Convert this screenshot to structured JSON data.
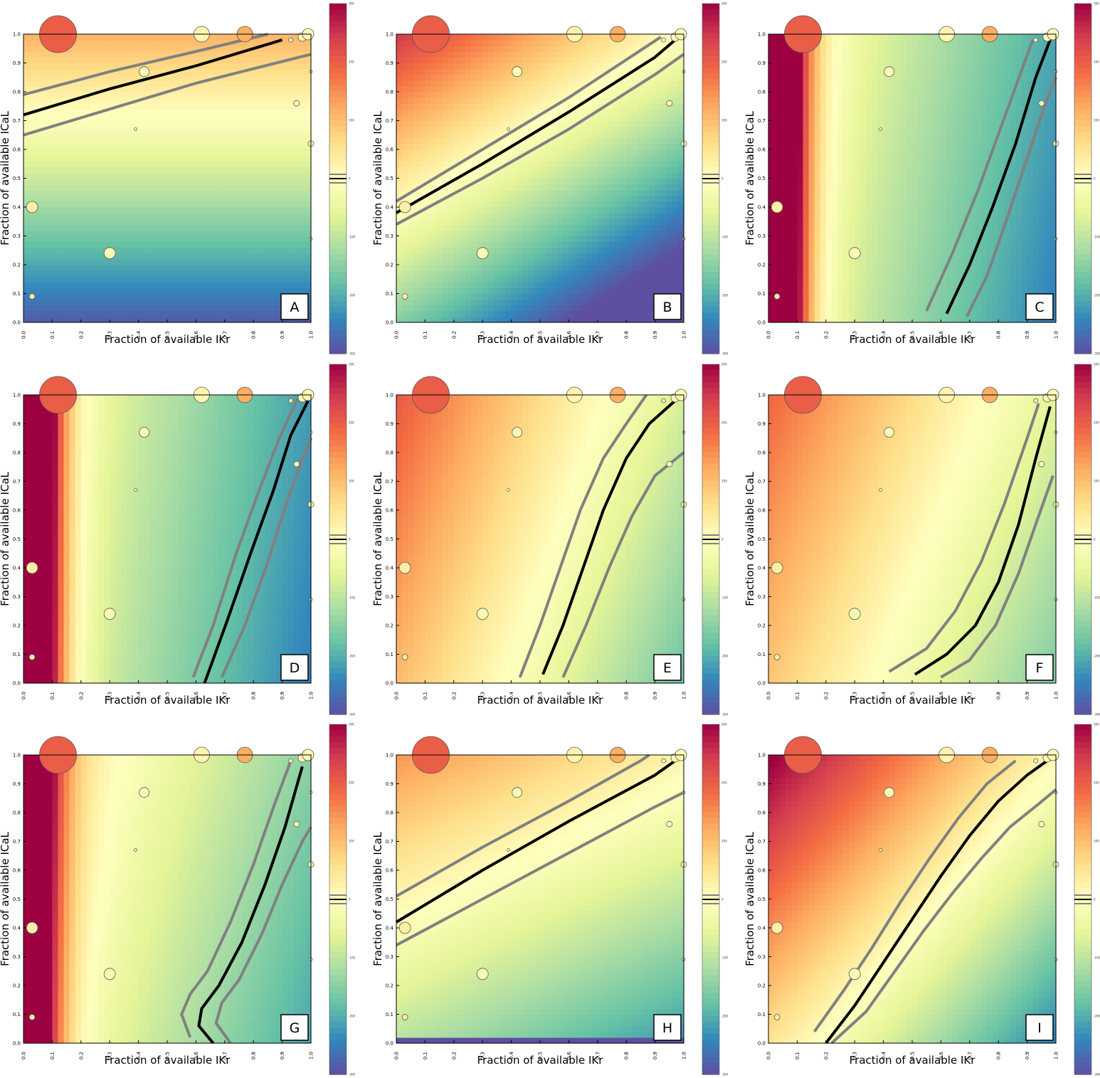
{
  "chart_data": [
    {
      "panel": "A",
      "type": "heatmap",
      "xlabel": "Fraction of available IKr",
      "ylabel": "Fraction of available ICaL",
      "xlim": [
        0,
        1
      ],
      "ylim": [
        0,
        1
      ],
      "xticks": [
        "0.0",
        "0.1",
        "0.2",
        "0.3",
        "0.4",
        "0.5",
        "0.6",
        "0.7",
        "0.8",
        "0.9",
        "1.0"
      ],
      "yticks": [
        "0.0",
        "0.1",
        "0.2",
        "0.3",
        "0.4",
        "0.5",
        "0.6",
        "0.7",
        "0.8",
        "0.9",
        "1.0"
      ],
      "colormap": "Spectral_r",
      "colorbar_range": [
        -300,
        300
      ],
      "colorbar_ticks": [
        "300",
        "200",
        "100",
        "0",
        "-100",
        "-200",
        "-300"
      ],
      "field": {
        "a": 0,
        "b": 0,
        "c": 400,
        "d": -288
      },
      "contour_black": [
        [
          0.0,
          0.72
        ],
        [
          0.3,
          0.81
        ],
        [
          0.6,
          0.89
        ],
        [
          0.9,
          0.98
        ]
      ],
      "contour_gray_upper": [
        [
          0.0,
          0.79
        ],
        [
          0.3,
          0.87
        ],
        [
          0.6,
          0.94
        ],
        [
          0.85,
          1.0
        ]
      ],
      "contour_gray_lower": [
        [
          0.0,
          0.65
        ],
        [
          0.3,
          0.74
        ],
        [
          0.6,
          0.83
        ],
        [
          1.0,
          0.93
        ]
      ]
    },
    {
      "panel": "B",
      "type": "heatmap",
      "xlabel": "Fraction of available IKr",
      "ylabel": "Fraction of available ICaL",
      "xlim": [
        0,
        1
      ],
      "ylim": [
        0,
        1
      ],
      "xticks": [
        "0.0",
        "0.1",
        "0.2",
        "0.3",
        "0.4",
        "0.5",
        "0.6",
        "0.7",
        "0.8",
        "0.9",
        "1.0"
      ],
      "yticks": [
        "0.0",
        "0.1",
        "0.2",
        "0.3",
        "0.4",
        "0.5",
        "0.6",
        "0.7",
        "0.8",
        "0.9",
        "1.0"
      ],
      "colormap": "Spectral_r",
      "colorbar_range": [
        -300,
        300
      ],
      "colorbar_ticks": [
        "300",
        "200",
        "100",
        "0",
        "-100",
        "-200",
        "-300"
      ],
      "field": {
        "a": -250,
        "b": 0,
        "c": 400,
        "d": -154
      },
      "contour_black": [
        [
          0.0,
          0.38
        ],
        [
          0.3,
          0.55
        ],
        [
          0.6,
          0.73
        ],
        [
          0.9,
          0.92
        ],
        [
          0.97,
          0.98
        ]
      ],
      "contour_gray_upper": [
        [
          0.0,
          0.42
        ],
        [
          0.3,
          0.6
        ],
        [
          0.6,
          0.78
        ],
        [
          0.92,
          0.99
        ]
      ],
      "contour_gray_lower": [
        [
          0.0,
          0.34
        ],
        [
          0.3,
          0.5
        ],
        [
          0.6,
          0.67
        ],
        [
          0.9,
          0.86
        ],
        [
          1.0,
          0.93
        ]
      ]
    },
    {
      "panel": "C",
      "type": "heatmap",
      "xlabel": "Fraction of available IKr",
      "ylabel": "Fraction of available ICaL",
      "xlim": [
        0,
        1
      ],
      "ylim": [
        0,
        1
      ],
      "xticks": [
        "0.0",
        "0.1",
        "0.2",
        "0.3",
        "0.4",
        "0.5",
        "0.6",
        "0.7",
        "0.8",
        "0.9",
        "1.0"
      ],
      "yticks": [
        "0.0",
        "0.1",
        "0.2",
        "0.3",
        "0.4",
        "0.5",
        "0.6",
        "0.7",
        "0.8",
        "0.9",
        "1.0"
      ],
      "colormap": "Spectral_r",
      "colorbar_range": [
        -300,
        300
      ],
      "colorbar_ticks": [
        "300",
        "200",
        "100",
        "0",
        "-100",
        "-200",
        "-300"
      ],
      "field": {
        "a": -230,
        "b": 2000,
        "c": 40,
        "d": -20
      },
      "contour_black": [
        [
          0.62,
          0.03
        ],
        [
          0.7,
          0.2
        ],
        [
          0.78,
          0.4
        ],
        [
          0.86,
          0.62
        ],
        [
          0.93,
          0.85
        ],
        [
          0.98,
          0.98
        ]
      ],
      "contour_gray_upper": [
        [
          0.55,
          0.04
        ],
        [
          0.64,
          0.24
        ],
        [
          0.73,
          0.46
        ],
        [
          0.81,
          0.68
        ],
        [
          0.89,
          0.9
        ],
        [
          0.92,
          0.98
        ]
      ],
      "contour_gray_lower": [
        [
          0.69,
          0.02
        ],
        [
          0.76,
          0.16
        ],
        [
          0.83,
          0.36
        ],
        [
          0.9,
          0.57
        ],
        [
          0.96,
          0.75
        ],
        [
          1.0,
          0.85
        ]
      ]
    },
    {
      "panel": "D",
      "type": "heatmap",
      "xlabel": "Fraction of available IKr",
      "ylabel": "Fraction of available ICaL",
      "xlim": [
        0,
        1
      ],
      "ylim": [
        0,
        1
      ],
      "xticks": [
        "0.0",
        "0.1",
        "0.2",
        "0.3",
        "0.4",
        "0.5",
        "0.6",
        "0.7",
        "0.8",
        "0.9",
        "1.0"
      ],
      "yticks": [
        "0.0",
        "0.1",
        "0.2",
        "0.3",
        "0.4",
        "0.5",
        "0.6",
        "0.7",
        "0.8",
        "0.9",
        "1.0"
      ],
      "colormap": "Spectral_r",
      "colorbar_range": [
        -300,
        300
      ],
      "colorbar_ticks": [
        "300",
        "200",
        "100",
        "0",
        "-100",
        "-200",
        "-300"
      ],
      "field": {
        "a": -220,
        "b": 2000,
        "c": 30,
        "d": -30
      },
      "contour_black": [
        [
          0.63,
          0.0
        ],
        [
          0.71,
          0.22
        ],
        [
          0.79,
          0.45
        ],
        [
          0.87,
          0.67
        ],
        [
          0.93,
          0.86
        ],
        [
          0.99,
          0.98
        ]
      ],
      "contour_gray_upper": [
        [
          0.59,
          0.02
        ],
        [
          0.66,
          0.2
        ],
        [
          0.74,
          0.45
        ],
        [
          0.82,
          0.67
        ],
        [
          0.89,
          0.85
        ],
        [
          0.96,
          1.0
        ]
      ],
      "contour_gray_lower": [
        [
          0.69,
          0.02
        ],
        [
          0.77,
          0.2
        ],
        [
          0.85,
          0.42
        ],
        [
          0.92,
          0.64
        ],
        [
          0.98,
          0.8
        ],
        [
          1.0,
          0.85
        ]
      ]
    },
    {
      "panel": "E",
      "type": "heatmap",
      "xlabel": "Fraction of available IKr",
      "ylabel": "Fraction of available ICaL",
      "xlim": [
        0,
        1
      ],
      "ylim": [
        0,
        1
      ],
      "xticks": [
        "0.0",
        "0.1",
        "0.2",
        "0.3",
        "0.4",
        "0.5",
        "0.6",
        "0.7",
        "0.8",
        "0.9",
        "1.0"
      ],
      "yticks": [
        "0.0",
        "0.1",
        "0.2",
        "0.3",
        "0.4",
        "0.5",
        "0.6",
        "0.7",
        "0.8",
        "0.9",
        "1.0"
      ],
      "colormap": "Spectral_r",
      "colorbar_range": [
        -300,
        300
      ],
      "colorbar_ticks": [
        "300",
        "200",
        "100",
        "0",
        "-100",
        "-200",
        "-300"
      ],
      "field": {
        "a": -280,
        "b": 0,
        "c": 100,
        "d": 105
      },
      "contour_black": [
        [
          0.51,
          0.03
        ],
        [
          0.58,
          0.2
        ],
        [
          0.65,
          0.4
        ],
        [
          0.72,
          0.6
        ],
        [
          0.8,
          0.78
        ],
        [
          0.88,
          0.9
        ],
        [
          0.97,
          0.98
        ]
      ],
      "contour_gray_upper": [
        [
          0.43,
          0.02
        ],
        [
          0.5,
          0.2
        ],
        [
          0.57,
          0.4
        ],
        [
          0.64,
          0.6
        ],
        [
          0.72,
          0.78
        ],
        [
          0.8,
          0.9
        ],
        [
          0.87,
          1.0
        ]
      ],
      "contour_gray_lower": [
        [
          0.58,
          0.02
        ],
        [
          0.66,
          0.2
        ],
        [
          0.74,
          0.4
        ],
        [
          0.82,
          0.58
        ],
        [
          0.9,
          0.72
        ],
        [
          1.0,
          0.8
        ]
      ]
    },
    {
      "panel": "F",
      "type": "heatmap",
      "xlabel": "Fraction of available IKr",
      "ylabel": "Fraction of available ICaL",
      "xlim": [
        0,
        1
      ],
      "ylim": [
        0,
        1
      ],
      "xticks": [
        "0.0",
        "0.1",
        "0.2",
        "0.3",
        "0.4",
        "0.5",
        "0.6",
        "0.7",
        "0.8",
        "0.9",
        "1.0"
      ],
      "yticks": [
        "0.0",
        "0.1",
        "0.2",
        "0.3",
        "0.4",
        "0.5",
        "0.6",
        "0.7",
        "0.8",
        "0.9",
        "1.0"
      ],
      "colormap": "Spectral_r",
      "colorbar_range": [
        -300,
        300
      ],
      "colorbar_ticks": [
        "300",
        "200",
        "100",
        "0",
        "-100",
        "-200",
        "-300"
      ],
      "field": {
        "a": -250,
        "b": 0,
        "c": 100,
        "d": 90
      },
      "contour_black": [
        [
          0.51,
          0.03
        ],
        [
          0.62,
          0.1
        ],
        [
          0.72,
          0.2
        ],
        [
          0.8,
          0.35
        ],
        [
          0.87,
          0.55
        ],
        [
          0.93,
          0.78
        ],
        [
          0.98,
          0.96
        ]
      ],
      "contour_gray_upper": [
        [
          0.42,
          0.04
        ],
        [
          0.55,
          0.12
        ],
        [
          0.65,
          0.25
        ],
        [
          0.74,
          0.42
        ],
        [
          0.82,
          0.62
        ],
        [
          0.9,
          0.85
        ],
        [
          0.94,
          0.97
        ]
      ],
      "contour_gray_lower": [
        [
          0.6,
          0.02
        ],
        [
          0.7,
          0.08
        ],
        [
          0.79,
          0.2
        ],
        [
          0.87,
          0.38
        ],
        [
          0.94,
          0.58
        ],
        [
          0.99,
          0.72
        ]
      ]
    },
    {
      "panel": "G",
      "type": "heatmap",
      "xlabel": "Fraction of available IKr",
      "ylabel": "Fraction of available ICaL",
      "xlim": [
        0,
        1
      ],
      "ylim": [
        0,
        1
      ],
      "xticks": [
        "0.0",
        "0.1",
        "0.2",
        "0.3",
        "0.4",
        "0.5",
        "0.6",
        "0.7",
        "0.8",
        "0.9",
        "1.0"
      ],
      "yticks": [
        "0.0",
        "0.1",
        "0.2",
        "0.3",
        "0.4",
        "0.5",
        "0.6",
        "0.7",
        "0.8",
        "0.9",
        "1.0"
      ],
      "colormap": "Spectral_r",
      "colorbar_range": [
        -300,
        300
      ],
      "colorbar_ticks": [
        "300",
        "200",
        "100",
        "0",
        "-100",
        "-200",
        "-300"
      ],
      "field": {
        "a": -220,
        "b": 1500,
        "c": 60,
        "d": 10
      },
      "contour_black": [
        [
          0.66,
          0.0
        ],
        [
          0.61,
          0.06
        ],
        [
          0.62,
          0.12
        ],
        [
          0.68,
          0.2
        ],
        [
          0.76,
          0.35
        ],
        [
          0.84,
          0.55
        ],
        [
          0.91,
          0.75
        ],
        [
          0.97,
          0.96
        ]
      ],
      "contour_gray_upper": [
        [
          0.58,
          0.02
        ],
        [
          0.55,
          0.1
        ],
        [
          0.58,
          0.17
        ],
        [
          0.64,
          0.25
        ],
        [
          0.72,
          0.42
        ],
        [
          0.8,
          0.62
        ],
        [
          0.87,
          0.82
        ],
        [
          0.93,
          0.98
        ]
      ],
      "contour_gray_lower": [
        [
          0.72,
          0.0
        ],
        [
          0.67,
          0.07
        ],
        [
          0.69,
          0.14
        ],
        [
          0.75,
          0.22
        ],
        [
          0.83,
          0.38
        ],
        [
          0.9,
          0.55
        ],
        [
          0.97,
          0.7
        ],
        [
          1.0,
          0.75
        ]
      ]
    },
    {
      "panel": "H",
      "type": "heatmap",
      "xlabel": "Fraction of available IKr",
      "ylabel": "Fraction of available ICaL",
      "xlim": [
        0,
        1
      ],
      "ylim": [
        0,
        1
      ],
      "xticks": [
        "0.0",
        "0.1",
        "0.2",
        "0.3",
        "0.4",
        "0.5",
        "0.6",
        "0.7",
        "0.8",
        "0.9",
        "1.0"
      ],
      "yticks": [
        "0.0",
        "0.1",
        "0.2",
        "0.3",
        "0.4",
        "0.5",
        "0.6",
        "0.7",
        "0.8",
        "0.9",
        "1.0"
      ],
      "colormap": "Spectral_r",
      "colorbar_range": [
        -300,
        300
      ],
      "colorbar_ticks": [
        "300",
        "200",
        "100",
        "0",
        "-100",
        "-200",
        "-300"
      ],
      "field": {
        "a": -120,
        "b": 0,
        "c": 250,
        "d": -107,
        "floor_band": 0.03,
        "floor_value": -300
      },
      "contour_black": [
        [
          0.0,
          0.42
        ],
        [
          0.3,
          0.6
        ],
        [
          0.6,
          0.77
        ],
        [
          0.9,
          0.93
        ],
        [
          0.97,
          0.98
        ]
      ],
      "contour_gray_upper": [
        [
          0.0,
          0.51
        ],
        [
          0.3,
          0.68
        ],
        [
          0.6,
          0.84
        ],
        [
          0.85,
          0.98
        ],
        [
          0.88,
          1.0
        ]
      ],
      "contour_gray_lower": [
        [
          0.0,
          0.34
        ],
        [
          0.3,
          0.5
        ],
        [
          0.6,
          0.66
        ],
        [
          0.9,
          0.82
        ],
        [
          1.0,
          0.87
        ]
      ]
    },
    {
      "panel": "I",
      "type": "heatmap",
      "xlabel": "Fraction of available IKr",
      "ylabel": "Fraction of available ICaL",
      "xlim": [
        0,
        1
      ],
      "ylim": [
        0,
        1
      ],
      "xticks": [
        "0.0",
        "0.1",
        "0.2",
        "0.3",
        "0.4",
        "0.5",
        "0.6",
        "0.7",
        "0.8",
        "0.9",
        "1.0"
      ],
      "yticks": [
        "0.0",
        "0.1",
        "0.2",
        "0.3",
        "0.4",
        "0.5",
        "0.6",
        "0.7",
        "0.8",
        "0.9",
        "1.0"
      ],
      "colormap": "Spectral_r",
      "colorbar_range": [
        -300,
        300
      ],
      "colorbar_ticks": [
        "300",
        "200",
        "100",
        "0",
        "-100",
        "-200",
        "-300"
      ],
      "field": {
        "a": -300,
        "b": 0,
        "c": 260,
        "d": 50
      },
      "contour_black": [
        [
          0.2,
          0.0
        ],
        [
          0.3,
          0.13
        ],
        [
          0.4,
          0.28
        ],
        [
          0.5,
          0.43
        ],
        [
          0.6,
          0.58
        ],
        [
          0.7,
          0.72
        ],
        [
          0.8,
          0.84
        ],
        [
          0.9,
          0.93
        ],
        [
          0.97,
          0.98
        ]
      ],
      "contour_gray_upper": [
        [
          0.16,
          0.04
        ],
        [
          0.26,
          0.18
        ],
        [
          0.36,
          0.33
        ],
        [
          0.46,
          0.49
        ],
        [
          0.56,
          0.64
        ],
        [
          0.66,
          0.78
        ],
        [
          0.76,
          0.9
        ],
        [
          0.86,
          0.98
        ]
      ],
      "contour_gray_lower": [
        [
          0.22,
          0.0
        ],
        [
          0.34,
          0.11
        ],
        [
          0.44,
          0.25
        ],
        [
          0.54,
          0.39
        ],
        [
          0.64,
          0.52
        ],
        [
          0.74,
          0.64
        ],
        [
          0.84,
          0.75
        ],
        [
          0.94,
          0.83
        ],
        [
          1.0,
          0.88
        ]
      ]
    }
  ],
  "markers": [
    {
      "x": 0.12,
      "y": 1.0,
      "r": 26,
      "value": 200
    },
    {
      "x": 0.03,
      "y": 0.4,
      "r": 8,
      "value": 30
    },
    {
      "x": 0.3,
      "y": 0.24,
      "r": 8,
      "value": -20
    },
    {
      "x": 0.42,
      "y": 0.87,
      "r": 7,
      "value": -10
    },
    {
      "x": 0.03,
      "y": 0.09,
      "r": 4,
      "value": 30
    },
    {
      "x": 0.39,
      "y": 0.67,
      "r": 2,
      "value": 0
    },
    {
      "x": 0.62,
      "y": 1.0,
      "r": 11,
      "value": 20
    },
    {
      "x": 0.77,
      "y": 1.0,
      "r": 11,
      "value": 120
    },
    {
      "x": 0.95,
      "y": 0.76,
      "r": 4,
      "value": -10
    },
    {
      "x": 1.0,
      "y": 0.62,
      "r": 4,
      "value": -20
    },
    {
      "x": 1.0,
      "y": 0.29,
      "r": 2,
      "value": -30
    },
    {
      "x": 1.0,
      "y": 0.87,
      "r": 2,
      "value": -10
    },
    {
      "x": 0.93,
      "y": 0.98,
      "r": 3,
      "value": 10
    },
    {
      "x": 0.97,
      "y": 0.99,
      "r": 6,
      "value": 15
    },
    {
      "x": 0.99,
      "y": 1.0,
      "r": 8,
      "value": 10
    }
  ]
}
